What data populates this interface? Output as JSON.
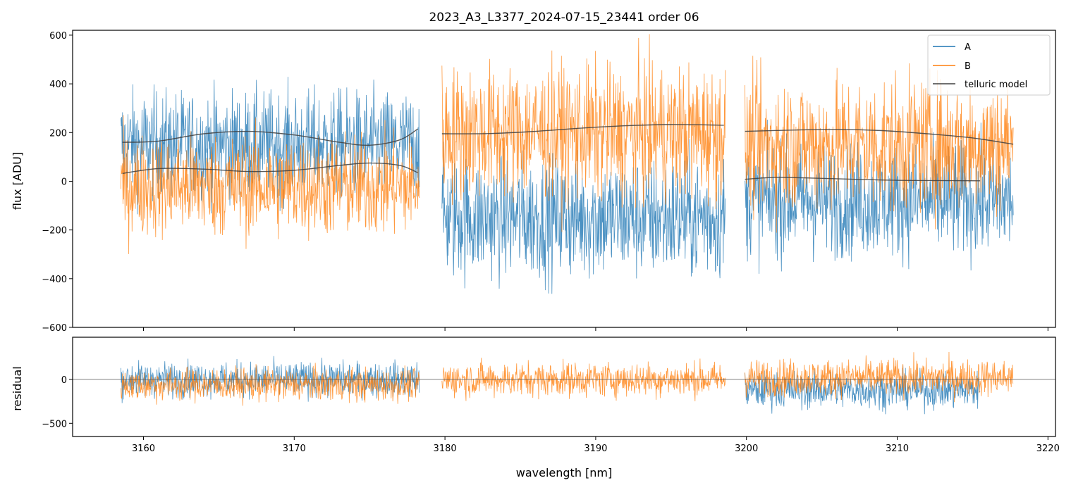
{
  "chart_data": {
    "type": "line",
    "title": "2023_A3_L3377_2024-07-15_23441  order 06",
    "xlabel": "wavelength [nm]",
    "xlim": [
      3155.3,
      3220.5
    ],
    "x_ticks": [
      3160,
      3170,
      3180,
      3190,
      3200,
      3210,
      3220
    ],
    "x_tick_labels": [
      "3160",
      "3170",
      "3180",
      "3190",
      "3200",
      "3210",
      "3220"
    ],
    "segments": [
      {
        "x_start": 3158.5,
        "x_end": 3178.3
      },
      {
        "x_start": 3179.8,
        "x_end": 3198.6
      },
      {
        "x_start": 3199.9,
        "x_end": 3217.7
      }
    ],
    "top_panel": {
      "ylabel": "flux [ADU]",
      "ylim": [
        -600,
        620
      ],
      "y_ticks": [
        -600,
        -400,
        -200,
        0,
        200,
        400,
        600
      ],
      "y_tick_labels": [
        "−600",
        "−400",
        "−200",
        "0",
        "200",
        "400",
        "600"
      ],
      "series": [
        {
          "name": "A",
          "color": "#1f77b4",
          "segment_means": [
            150,
            -150,
            -80
          ],
          "segment_spreads": [
            200,
            230,
            210
          ]
        },
        {
          "name": "B",
          "color": "#ff7f0e",
          "segment_means": [
            -20,
            200,
            150
          ],
          "segment_spreads": [
            190,
            250,
            250
          ]
        }
      ],
      "telluric_model": {
        "name": "telluric model",
        "color": "#404040",
        "curves": [
          {
            "x": [
              3158.6,
              3161,
              3164,
              3167,
              3170,
              3173,
              3175,
              3177,
              3178.2
            ],
            "y": [
              160,
              165,
              195,
              205,
              190,
              160,
              148,
              170,
              215
            ]
          },
          {
            "x": [
              3158.6,
              3161,
              3164,
              3167,
              3170,
              3173,
              3175,
              3177,
              3178.2
            ],
            "y": [
              32,
              52,
              50,
              40,
              45,
              65,
              75,
              65,
              35
            ]
          },
          {
            "x": [
              3179.8,
              3183,
              3186,
              3189,
              3192,
              3195,
              3198.5
            ],
            "y": [
              195,
              196,
              205,
              218,
              228,
              233,
              230
            ]
          },
          {
            "x": [
              3199.9,
              3203,
              3206,
              3209,
              3212,
              3215,
              3217.7
            ],
            "y": [
              205,
              210,
              213,
              208,
              195,
              178,
              152
            ]
          },
          {
            "x": [
              3199.9,
              3202,
              3205,
              3209,
              3212,
              3215.5
            ],
            "y": [
              8,
              16,
              12,
              5,
              3,
              2
            ]
          }
        ]
      }
    },
    "bottom_panel": {
      "ylabel": "residual",
      "ylim": [
        -650,
        480
      ],
      "y_ticks": [
        -500,
        0
      ],
      "y_tick_labels": [
        "−500",
        "0"
      ],
      "zero_line": 0,
      "series": [
        {
          "name": "A",
          "color": "#1f77b4",
          "segments": [
            {
              "x_start": 3158.5,
              "x_end": 3178.3,
              "mean": 0,
              "spread": 180
            },
            {
              "x_start": 3199.9,
              "x_end": 3215.5,
              "mean": -120,
              "spread": 190
            }
          ]
        },
        {
          "name": "B",
          "color": "#ff7f0e",
          "segments": [
            {
              "x_start": 3158.5,
              "x_end": 3178.3,
              "mean": -60,
              "spread": 170
            },
            {
              "x_start": 3179.8,
              "x_end": 3198.6,
              "mean": 0,
              "spread": 180
            },
            {
              "x_start": 3199.9,
              "x_end": 3217.7,
              "mean": 20,
              "spread": 190
            }
          ]
        }
      ]
    },
    "legend": {
      "location": "top-right",
      "entries": [
        {
          "label": "A",
          "color": "#1f77b4"
        },
        {
          "label": "B",
          "color": "#ff7f0e"
        },
        {
          "label": "telluric model",
          "color": "#404040"
        }
      ]
    }
  }
}
